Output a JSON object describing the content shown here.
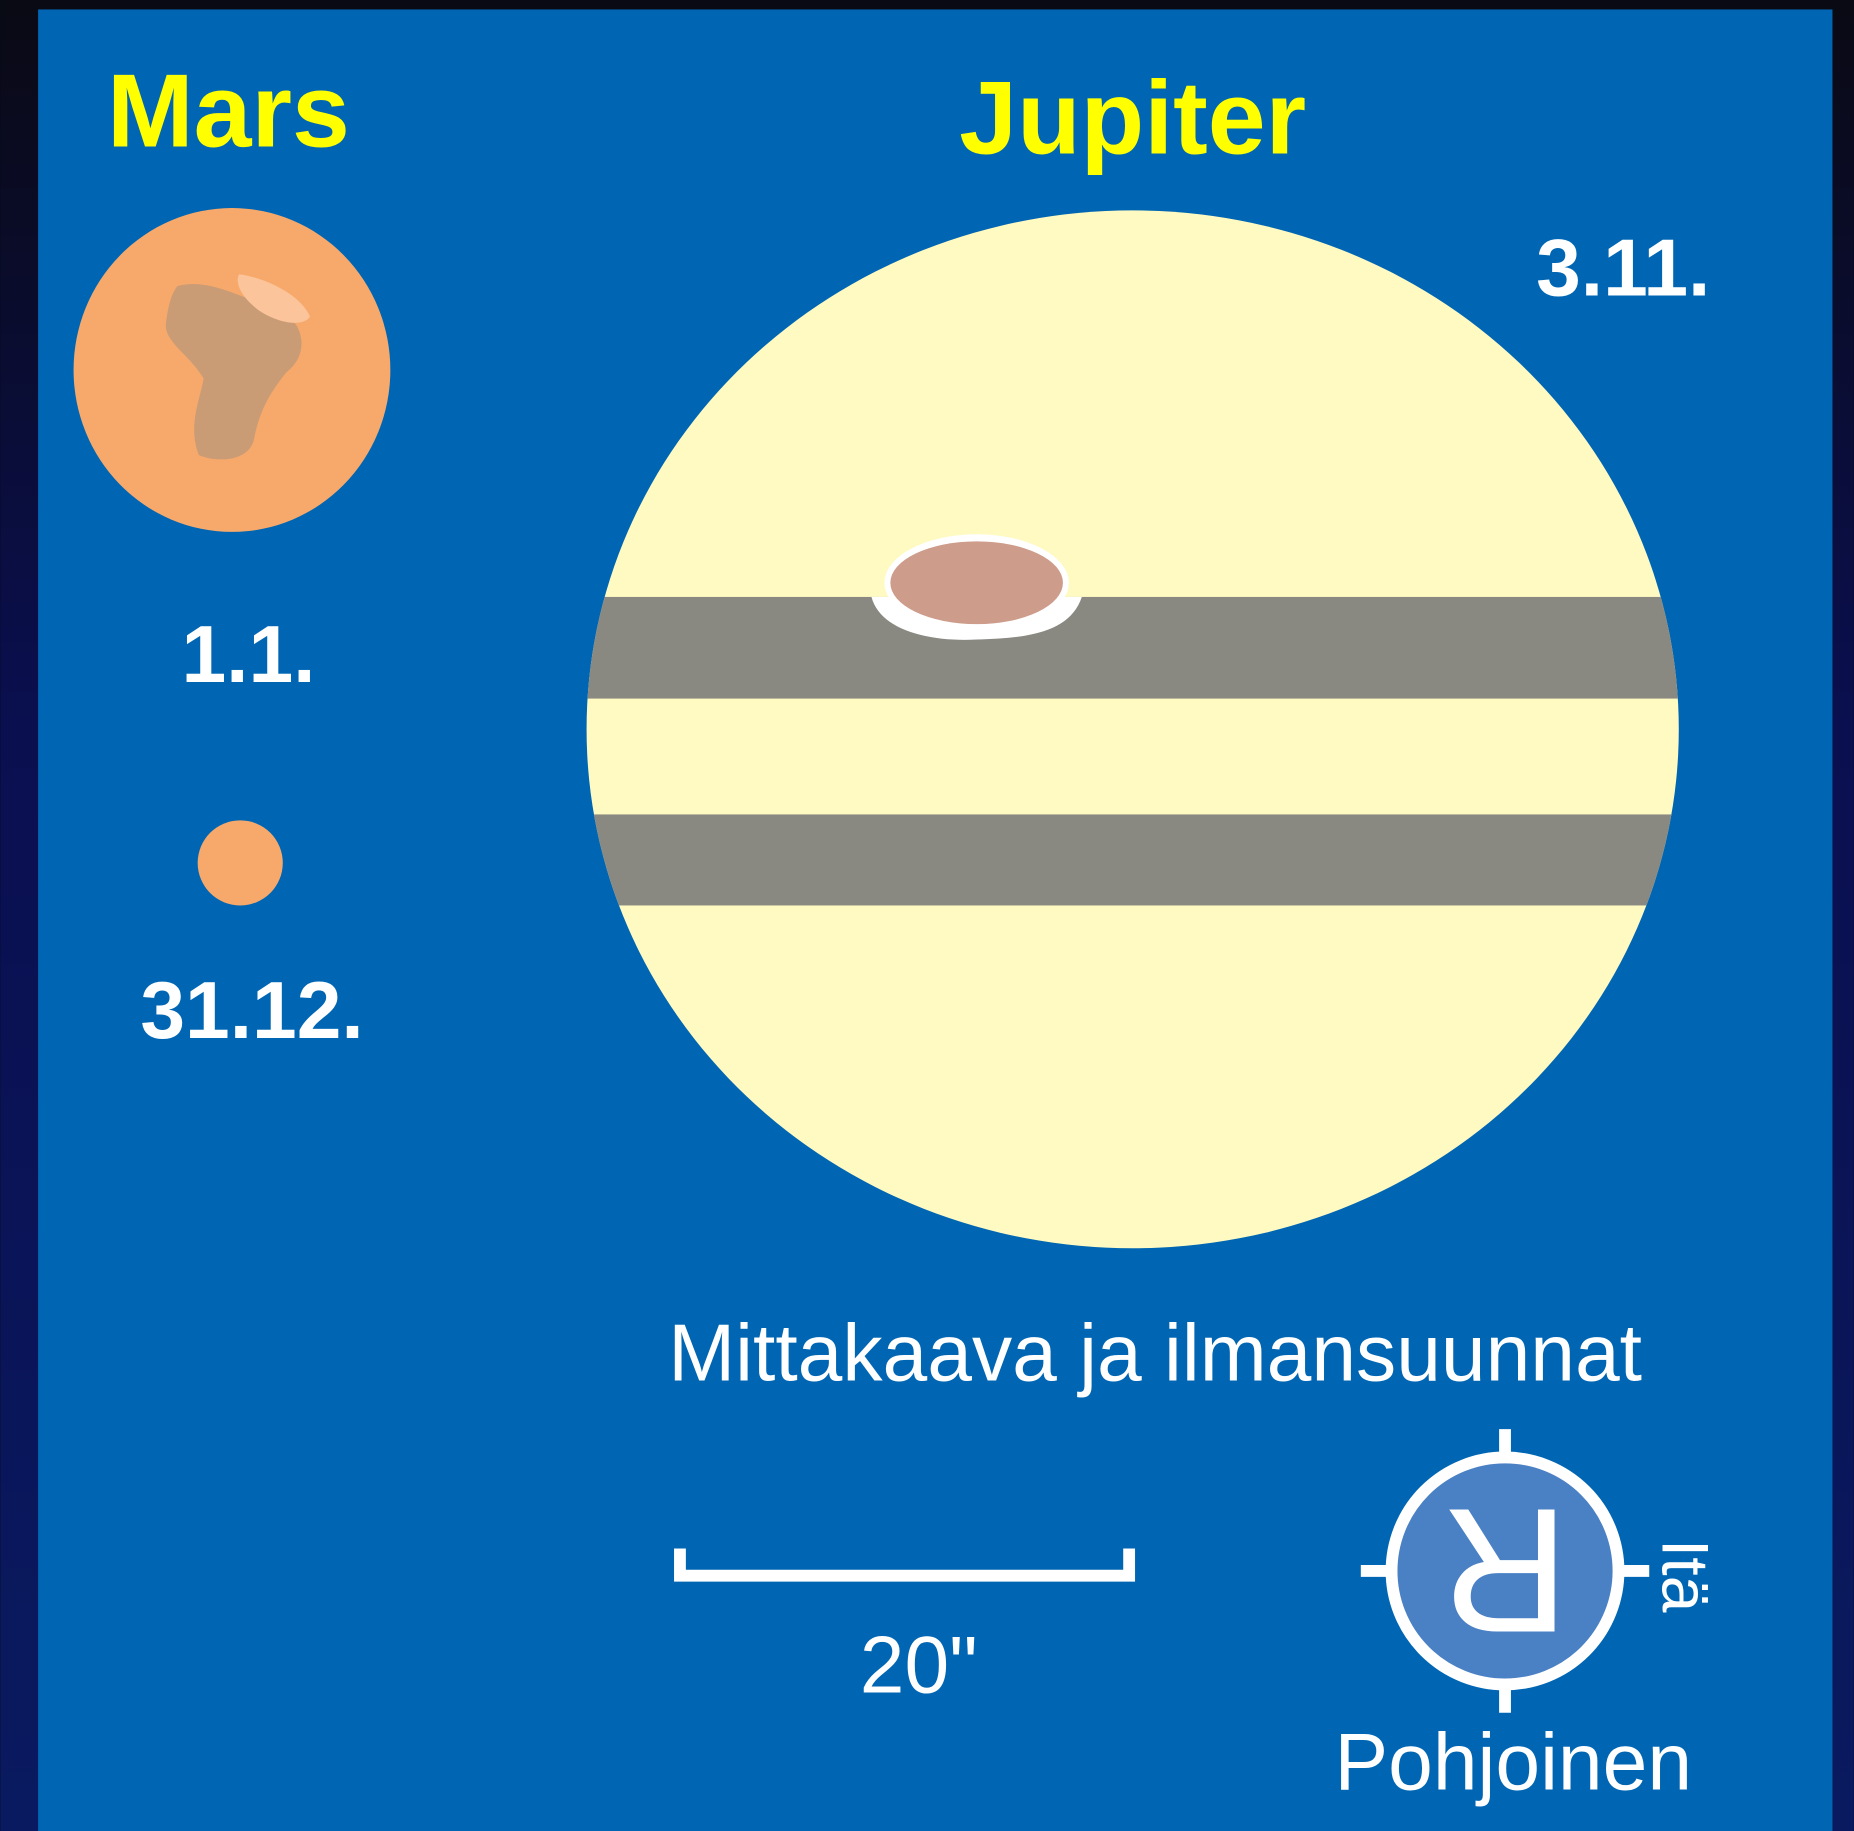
{
  "mars": {
    "title": "Mars",
    "dates": [
      "1.1.",
      "31.12."
    ]
  },
  "jupiter": {
    "title": "Jupiter",
    "date": "3.11."
  },
  "scale": {
    "title": "Mittakaava ja ilmansuunnat",
    "bar_label": "20\""
  },
  "compass": {
    "letter": "R",
    "east": "Itä",
    "north": "Pohjoinen"
  }
}
